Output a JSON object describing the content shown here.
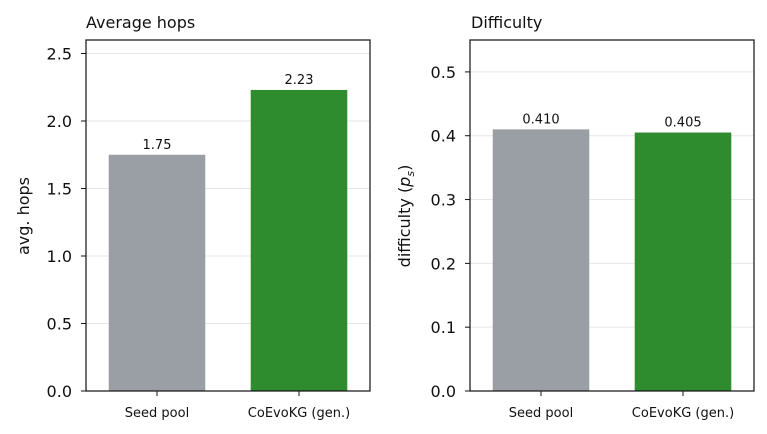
{
  "chart_data": [
    {
      "type": "bar",
      "title": "Average hops",
      "ylabel": "avg. hops",
      "xlabel": "",
      "categories": [
        "Seed pool",
        "CoEvoKG (gen.)"
      ],
      "values": [
        1.75,
        2.23
      ],
      "value_labels": [
        "1.75",
        "2.23"
      ],
      "colors": [
        "#9a9fa5",
        "#2e8b2e"
      ],
      "ylim": [
        0,
        2.6
      ],
      "yticks": [
        0.0,
        0.5,
        1.0,
        1.5,
        2.0,
        2.5
      ],
      "ytick_labels": [
        "0.0",
        "0.5",
        "1.0",
        "1.5",
        "2.0",
        "2.5"
      ],
      "grid": "horizontal",
      "legend": "none"
    },
    {
      "type": "bar",
      "title": "Difficulty",
      "ylabel": "difficulty (p",
      "ylabel_sub": "s",
      "ylabel_close": ")",
      "xlabel": "",
      "categories": [
        "Seed pool",
        "CoEvoKG (gen.)"
      ],
      "values": [
        0.41,
        0.405
      ],
      "value_labels": [
        "0.410",
        "0.405"
      ],
      "colors": [
        "#9a9fa5",
        "#2e8b2e"
      ],
      "ylim": [
        0,
        0.55
      ],
      "yticks": [
        0.0,
        0.1,
        0.2,
        0.3,
        0.4,
        0.5
      ],
      "ytick_labels": [
        "0.0",
        "0.1",
        "0.2",
        "0.3",
        "0.4",
        "0.5"
      ],
      "grid": "horizontal",
      "legend": "none"
    }
  ]
}
